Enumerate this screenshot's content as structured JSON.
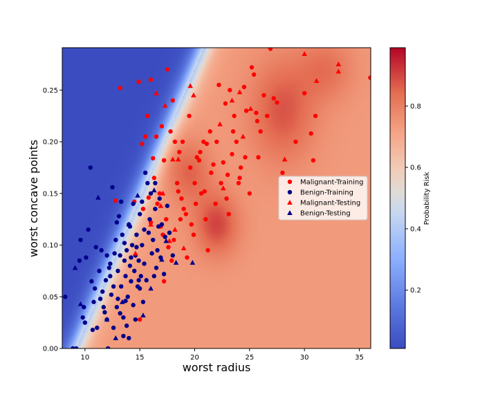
{
  "chart_data": {
    "type": "scatter",
    "title": "",
    "xlabel": "worst radius",
    "ylabel": "worst concave points",
    "xlim": [
      7.93,
      36.04
    ],
    "ylim": [
      0.0,
      0.291
    ],
    "xticks": [
      10,
      15,
      20,
      25,
      30,
      35
    ],
    "yticks": [
      0.0,
      0.05,
      0.1,
      0.15,
      0.2,
      0.25
    ],
    "grid": false,
    "legend_position": "center-right",
    "background": "probability risk heatmap (blue = low, red = high)",
    "colorbar": {
      "label": "Probability Risk",
      "range": [
        0.01,
        0.99
      ],
      "ticks": [
        0.2,
        0.4,
        0.6,
        0.8
      ],
      "colormap": "coolwarm"
    },
    "series": [
      {
        "name": "Malignant-Training",
        "marker": "circle",
        "color": "#ff0000",
        "points": [
          [
            12.8,
            0.143
          ],
          [
            13.2,
            0.252
          ],
          [
            14.9,
            0.258
          ],
          [
            15.2,
            0.198
          ],
          [
            15.5,
            0.205
          ],
          [
            15.7,
            0.225
          ],
          [
            16.2,
            0.184
          ],
          [
            16.5,
            0.205
          ],
          [
            16.8,
            0.15
          ],
          [
            17.0,
            0.215
          ],
          [
            17.2,
            0.182
          ],
          [
            17.5,
            0.27
          ],
          [
            17.8,
            0.21
          ],
          [
            18.0,
            0.24
          ],
          [
            18.2,
            0.2
          ],
          [
            18.5,
            0.152
          ],
          [
            18.6,
            0.19
          ],
          [
            18.8,
            0.145
          ],
          [
            19.0,
            0.135
          ],
          [
            19.2,
            0.13
          ],
          [
            19.5,
            0.225
          ],
          [
            19.7,
            0.12
          ],
          [
            19.9,
            0.11
          ],
          [
            20.0,
            0.16
          ],
          [
            20.2,
            0.185
          ],
          [
            20.4,
            0.182
          ],
          [
            20.6,
            0.15
          ],
          [
            20.8,
            0.2
          ],
          [
            21.0,
            0.125
          ],
          [
            21.2,
            0.095
          ],
          [
            21.5,
            0.17
          ],
          [
            21.7,
            0.178
          ],
          [
            22.0,
            0.2
          ],
          [
            22.2,
            0.255
          ],
          [
            22.4,
            0.16
          ],
          [
            22.6,
            0.18
          ],
          [
            22.8,
            0.237
          ],
          [
            23.0,
            0.168
          ],
          [
            23.2,
            0.25
          ],
          [
            23.4,
            0.188
          ],
          [
            23.6,
            0.225
          ],
          [
            23.8,
            0.2
          ],
          [
            24.0,
            0.16
          ],
          [
            24.2,
            0.175
          ],
          [
            24.5,
            0.253
          ],
          [
            24.7,
            0.23
          ],
          [
            25.0,
            0.15
          ],
          [
            25.2,
            0.272
          ],
          [
            25.4,
            0.265
          ],
          [
            25.6,
            0.228
          ],
          [
            25.8,
            0.185
          ],
          [
            26.0,
            0.21
          ],
          [
            26.3,
            0.245
          ],
          [
            26.6,
            0.225
          ],
          [
            26.9,
            0.29
          ],
          [
            27.2,
            0.242
          ],
          [
            27.5,
            0.238
          ],
          [
            28.0,
            0.17
          ],
          [
            29.2,
            0.2
          ],
          [
            30.0,
            0.247
          ],
          [
            30.6,
            0.208
          ],
          [
            30.8,
            0.182
          ],
          [
            31.0,
            0.225
          ],
          [
            36.0,
            0.262
          ],
          [
            15.3,
            0.135
          ],
          [
            15.8,
            0.146
          ],
          [
            16.0,
            0.122
          ],
          [
            16.3,
            0.165
          ],
          [
            16.6,
            0.14
          ],
          [
            16.9,
            0.118
          ],
          [
            17.1,
            0.11
          ],
          [
            17.4,
            0.125
          ],
          [
            17.6,
            0.098
          ],
          [
            17.9,
            0.085
          ],
          [
            18.1,
            0.105
          ],
          [
            18.4,
            0.16
          ],
          [
            20.1,
            0.14
          ],
          [
            21.9,
            0.14
          ],
          [
            19.3,
            0.088
          ],
          [
            18.7,
            0.125
          ],
          [
            20.5,
            0.19
          ],
          [
            21.4,
            0.21
          ],
          [
            22.9,
            0.145
          ],
          [
            23.5,
            0.21
          ],
          [
            24.1,
            0.165
          ],
          [
            24.6,
            0.185
          ],
          [
            25.7,
            0.22
          ],
          [
            21.1,
            0.198
          ],
          [
            19.6,
            0.175
          ],
          [
            23.1,
            0.13
          ],
          [
            15.0,
            0.028
          ],
          [
            17.2,
            0.065
          ],
          [
            14.5,
            0.142
          ],
          [
            20.9,
            0.152
          ],
          [
            16.0,
            0.26
          ],
          [
            18.9,
            0.2
          ]
        ]
      },
      {
        "name": "Benign-Training",
        "marker": "circle",
        "color": "#00008b",
        "points": [
          [
            8.2,
            0.05
          ],
          [
            8.9,
            0.0
          ],
          [
            9.2,
            0.0
          ],
          [
            9.5,
            0.085
          ],
          [
            9.6,
            0.105
          ],
          [
            9.8,
            0.03
          ],
          [
            10.0,
            0.025
          ],
          [
            10.1,
            0.088
          ],
          [
            10.3,
            0.115
          ],
          [
            10.5,
            0.175
          ],
          [
            10.6,
            0.065
          ],
          [
            10.8,
            0.045
          ],
          [
            11.0,
            0.098
          ],
          [
            11.1,
            0.02
          ],
          [
            11.3,
            0.075
          ],
          [
            11.5,
            0.095
          ],
          [
            11.6,
            0.055
          ],
          [
            11.8,
            0.035
          ],
          [
            12.0,
            0.09
          ],
          [
            12.1,
            0.0
          ],
          [
            12.3,
            0.082
          ],
          [
            12.5,
            0.156
          ],
          [
            12.6,
            0.06
          ],
          [
            12.8,
            0.105
          ],
          [
            12.9,
            0.04
          ],
          [
            13.0,
            0.075
          ],
          [
            13.1,
            0.128
          ],
          [
            13.2,
            0.09
          ],
          [
            13.3,
            0.06
          ],
          [
            13.4,
            0.11
          ],
          [
            13.5,
            0.03
          ],
          [
            13.6,
            0.085
          ],
          [
            13.7,
            0.07
          ],
          [
            13.8,
            0.095
          ],
          [
            13.9,
            0.05
          ],
          [
            14.0,
            0.12
          ],
          [
            14.1,
            0.08
          ],
          [
            14.2,
            0.065
          ],
          [
            14.3,
            0.1
          ],
          [
            14.4,
            0.14
          ],
          [
            14.5,
            0.075
          ],
          [
            14.6,
            0.09
          ],
          [
            14.7,
            0.11
          ],
          [
            14.8,
            0.06
          ],
          [
            14.9,
            0.085
          ],
          [
            15.0,
            0.13
          ],
          [
            15.1,
            0.07
          ],
          [
            15.2,
            0.1
          ],
          [
            15.3,
            0.045
          ],
          [
            15.4,
            0.115
          ],
          [
            15.5,
            0.17
          ],
          [
            15.7,
            0.16
          ],
          [
            15.9,
            0.125
          ],
          [
            16.0,
            0.15
          ],
          [
            16.2,
            0.105
          ],
          [
            16.4,
            0.135
          ],
          [
            16.6,
            0.095
          ],
          [
            16.8,
            0.145
          ],
          [
            17.0,
            0.12
          ],
          [
            17.3,
            0.108
          ],
          [
            17.5,
            0.138
          ],
          [
            17.7,
            0.112
          ],
          [
            18.0,
            0.09
          ],
          [
            13.5,
            0.012
          ],
          [
            13.8,
            0.022
          ],
          [
            14.0,
            0.01
          ],
          [
            12.7,
            0.092
          ],
          [
            12.2,
            0.078
          ],
          [
            11.9,
            0.066
          ],
          [
            11.4,
            0.048
          ],
          [
            10.9,
            0.058
          ],
          [
            13.6,
            0.102
          ],
          [
            14.2,
            0.088
          ],
          [
            14.7,
            0.098
          ],
          [
            15.4,
            0.082
          ],
          [
            16.1,
            0.092
          ],
          [
            16.5,
            0.078
          ],
          [
            16.9,
            0.088
          ],
          [
            17.2,
            0.072
          ],
          [
            13.0,
            0.048
          ],
          [
            12.4,
            0.052
          ],
          [
            11.7,
            0.04
          ],
          [
            14.4,
            0.042
          ],
          [
            15.0,
            0.058
          ],
          [
            15.6,
            0.066
          ],
          [
            16.3,
            0.07
          ],
          [
            12.0,
            0.028
          ],
          [
            12.6,
            0.02
          ],
          [
            13.2,
            0.034
          ],
          [
            14.6,
            0.028
          ],
          [
            10.7,
            0.018
          ],
          [
            9.9,
            0.04
          ],
          [
            15.8,
            0.112
          ],
          [
            16.7,
            0.118
          ],
          [
            14.1,
            0.118
          ],
          [
            13.3,
            0.142
          ],
          [
            12.9,
            0.122
          ],
          [
            15.2,
            0.142
          ],
          [
            16.4,
            0.16
          ],
          [
            14.9,
            0.066
          ],
          [
            13.7,
            0.046
          ],
          [
            12.3,
            0.07
          ]
        ]
      },
      {
        "name": "Malignant-Testing",
        "marker": "triangle",
        "color": "#ff0000",
        "points": [
          [
            16.5,
            0.247
          ],
          [
            17.3,
            0.235
          ],
          [
            19.6,
            0.254
          ],
          [
            19.9,
            0.245
          ],
          [
            22.3,
            0.217
          ],
          [
            23.4,
            0.24
          ],
          [
            24.1,
            0.248
          ],
          [
            24.4,
            0.205
          ],
          [
            25.1,
            0.232
          ],
          [
            28.2,
            0.183
          ],
          [
            30.0,
            0.285
          ],
          [
            31.1,
            0.259
          ],
          [
            33.1,
            0.275
          ],
          [
            33.1,
            0.268
          ],
          [
            18.0,
            0.183
          ],
          [
            18.5,
            0.183
          ],
          [
            17.1,
            0.15
          ],
          [
            17.7,
            0.104
          ],
          [
            18.2,
            0.115
          ],
          [
            16.9,
            0.138
          ],
          [
            16.0,
            0.12
          ],
          [
            22.6,
            0.155
          ],
          [
            19.0,
            0.097
          ],
          [
            14.6,
            0.092
          ]
        ]
      },
      {
        "name": "Benign-Testing",
        "marker": "triangle",
        "color": "#00008b",
        "points": [
          [
            9.1,
            0.078
          ],
          [
            9.6,
            0.043
          ],
          [
            11.2,
            0.146
          ],
          [
            12.0,
            0.028
          ],
          [
            13.4,
            0.045
          ],
          [
            14.0,
            0.12
          ],
          [
            15.3,
            0.032
          ],
          [
            16.0,
            0.058
          ],
          [
            16.3,
            0.153
          ],
          [
            17.0,
            0.086
          ],
          [
            17.4,
            0.104
          ],
          [
            18.3,
            0.083
          ],
          [
            19.8,
            0.083
          ],
          [
            14.8,
            0.148
          ],
          [
            12.8,
            0.01
          ]
        ]
      }
    ]
  }
}
